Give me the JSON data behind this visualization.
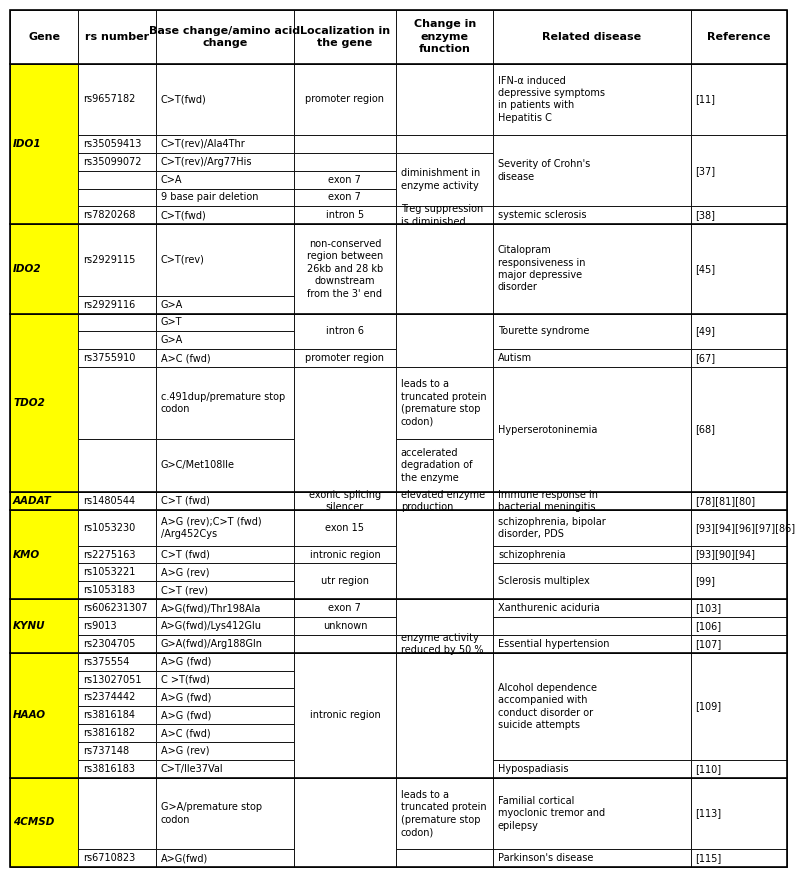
{
  "col_headers": [
    "Gene",
    "rs number",
    "Base change/amino acid\nchange",
    "Localization in\nthe gene",
    "Change in\nenzyme\nfunction",
    "Related disease",
    "Reference"
  ],
  "col_starts": [
    0.0,
    0.088,
    0.188,
    0.365,
    0.497,
    0.622,
    0.876
  ],
  "col_ends": [
    0.088,
    0.188,
    0.365,
    0.497,
    0.622,
    0.876,
    1.0
  ],
  "rows": [
    {
      "gene": "IDO1",
      "rs": "rs9657182",
      "base": "C>T(fwd)",
      "loc": "promoter region",
      "enz": "",
      "dis": "IFN-α induced\ndepressive symptoms\nin patients with\nHepatitis C",
      "ref": "[11]"
    },
    {
      "gene": "IDO1",
      "rs": "rs35059413",
      "base": "C>T(rev)/Ala4Thr",
      "loc": "",
      "enz": "",
      "dis": "",
      "ref": ""
    },
    {
      "gene": "IDO1",
      "rs": "rs35099072",
      "base": "C>T(rev)/Arg77His",
      "loc": "",
      "enz": "diminishment in\nenzyme activity",
      "dis": "Severity of Crohn's\ndisease",
      "ref": "[37]"
    },
    {
      "gene": "IDO1",
      "rs": "",
      "base": "C>A",
      "loc": "exon 7",
      "enz": "",
      "dis": "",
      "ref": ""
    },
    {
      "gene": "IDO1",
      "rs": "",
      "base": "9 base pair deletion",
      "loc": "exon 7",
      "enz": "",
      "dis": "",
      "ref": ""
    },
    {
      "gene": "IDO1",
      "rs": "rs7820268",
      "base": "C>T(fwd)",
      "loc": "intron 5",
      "enz": "Treg suppression\nis diminished",
      "dis": "systemic sclerosis",
      "ref": "[38]"
    },
    {
      "gene": "IDO2",
      "rs": "rs2929115",
      "base": "C>T(rev)",
      "loc": "non-conserved\nregion between\n26kb and 28 kb\ndownstream\nfrom the 3' end",
      "enz": "",
      "dis": "Citalopram\nresponsiveness in\nmajor depressive\ndisorder",
      "ref": "[45]"
    },
    {
      "gene": "IDO2",
      "rs": "rs2929116",
      "base": "G>A",
      "loc": "",
      "enz": "",
      "dis": "",
      "ref": ""
    },
    {
      "gene": "TDO2",
      "rs": "",
      "base": "G>T",
      "loc": "intron 6",
      "enz": "",
      "dis": "Tourette syndrome",
      "ref": "[49]"
    },
    {
      "gene": "TDO2",
      "rs": "",
      "base": "G>A",
      "loc": "",
      "enz": "",
      "dis": "",
      "ref": ""
    },
    {
      "gene": "TDO2",
      "rs": "rs3755910",
      "base": "A>C (fwd)",
      "loc": "promoter region",
      "enz": "",
      "dis": "Autism",
      "ref": "[67]"
    },
    {
      "gene": "TDO2",
      "rs": "",
      "base": "c.491dup/premature stop\ncodon",
      "loc": "",
      "enz": "leads to a\ntruncated protein\n(premature stop\ncodon)",
      "dis": "Hyperserotoninemia",
      "ref": "[68]"
    },
    {
      "gene": "TDO2",
      "rs": "",
      "base": "G>C/Met108Ile",
      "loc": "",
      "enz": "accelerated\ndegradation of\nthe enzyme",
      "dis": "",
      "ref": ""
    },
    {
      "gene": "AADAT",
      "rs": "rs1480544",
      "base": "C>T (fwd)",
      "loc": "exonic splicing\nsilencer",
      "enz": "elevated enzyme\nproduction",
      "dis": "Immune response in\nbacterial meningitis",
      "ref": "[78][81][80]"
    },
    {
      "gene": "KMO",
      "rs": "rs1053230",
      "base": "A>G (rev);C>T (fwd)\n/Arg452Cys",
      "loc": "exon 15",
      "enz": "",
      "dis": "schizophrenia, bipolar\ndisorder, PDS",
      "ref": "[93][94][96][97][86]"
    },
    {
      "gene": "KMO",
      "rs": "rs2275163",
      "base": "C>T (fwd)",
      "loc": "intronic region",
      "enz": "",
      "dis": "schizophrenia",
      "ref": "[93][90][94]"
    },
    {
      "gene": "KMO",
      "rs": "rs1053221",
      "base": "A>G (rev)",
      "loc": "utr region",
      "enz": "",
      "dis": "Sclerosis multiplex",
      "ref": "[99]"
    },
    {
      "gene": "KMO",
      "rs": "rs1053183",
      "base": "C>T (rev)",
      "loc": "",
      "enz": "",
      "dis": "",
      "ref": ""
    },
    {
      "gene": "KYNU",
      "rs": "rs606231307",
      "base": "A>G(fwd)/Thr198Ala",
      "loc": "exon 7",
      "enz": "",
      "dis": "Xanthurenic aciduria",
      "ref": "[103]"
    },
    {
      "gene": "KYNU",
      "rs": "rs9013",
      "base": "A>G(fwd)/Lys412Glu",
      "loc": "unknown",
      "enz": "",
      "dis": "",
      "ref": "[106]"
    },
    {
      "gene": "KYNU",
      "rs": "rs2304705",
      "base": "G>A(fwd)/Arg188Gln",
      "loc": "",
      "enz": "enzyme activity\nreduced by 50 %",
      "dis": "Essential hypertension",
      "ref": "[107]"
    },
    {
      "gene": "HAAO",
      "rs": "rs375554",
      "base": "A>G (fwd)",
      "loc": "intronic region",
      "enz": "",
      "dis": "Alcohol dependence\naccompanied with\nconduct disorder or\nsuicide attempts",
      "ref": "[109]"
    },
    {
      "gene": "HAAO",
      "rs": "rs13027051",
      "base": "C >T(fwd)",
      "loc": "",
      "enz": "",
      "dis": "",
      "ref": ""
    },
    {
      "gene": "HAAO",
      "rs": "rs2374442",
      "base": "A>G (fwd)",
      "loc": "",
      "enz": "",
      "dis": "",
      "ref": ""
    },
    {
      "gene": "HAAO",
      "rs": "rs3816184",
      "base": "A>G (fwd)",
      "loc": "",
      "enz": "",
      "dis": "",
      "ref": ""
    },
    {
      "gene": "HAAO",
      "rs": "rs3816182",
      "base": "A>C (fwd)",
      "loc": "",
      "enz": "",
      "dis": "",
      "ref": ""
    },
    {
      "gene": "HAAO",
      "rs": "rs737148",
      "base": "A>G (rev)",
      "loc": "",
      "enz": "",
      "dis": "",
      "ref": ""
    },
    {
      "gene": "HAAO",
      "rs": "rs3816183",
      "base": "C>T/Ile37Val",
      "loc": "",
      "enz": "",
      "dis": "Hypospadiasis",
      "ref": "[110]"
    },
    {
      "gene": "4CMSD",
      "rs": "",
      "base": "G>A/premature stop\ncodon",
      "loc": "",
      "enz": "leads to a\ntruncated protein\n(premature stop\ncodon)",
      "dis": "Familial cortical\nmyoclonic tremor and\nepilepsy",
      "ref": "[113]"
    },
    {
      "gene": "4CMSD",
      "rs": "rs6710823",
      "base": "A>G(fwd)",
      "loc": "",
      "enz": "",
      "dis": "Parkinson's disease",
      "ref": "[115]"
    }
  ],
  "highlight_color": "#FFFF00",
  "font_size": 7.0,
  "header_font_size": 8.0,
  "lw": 0.6
}
